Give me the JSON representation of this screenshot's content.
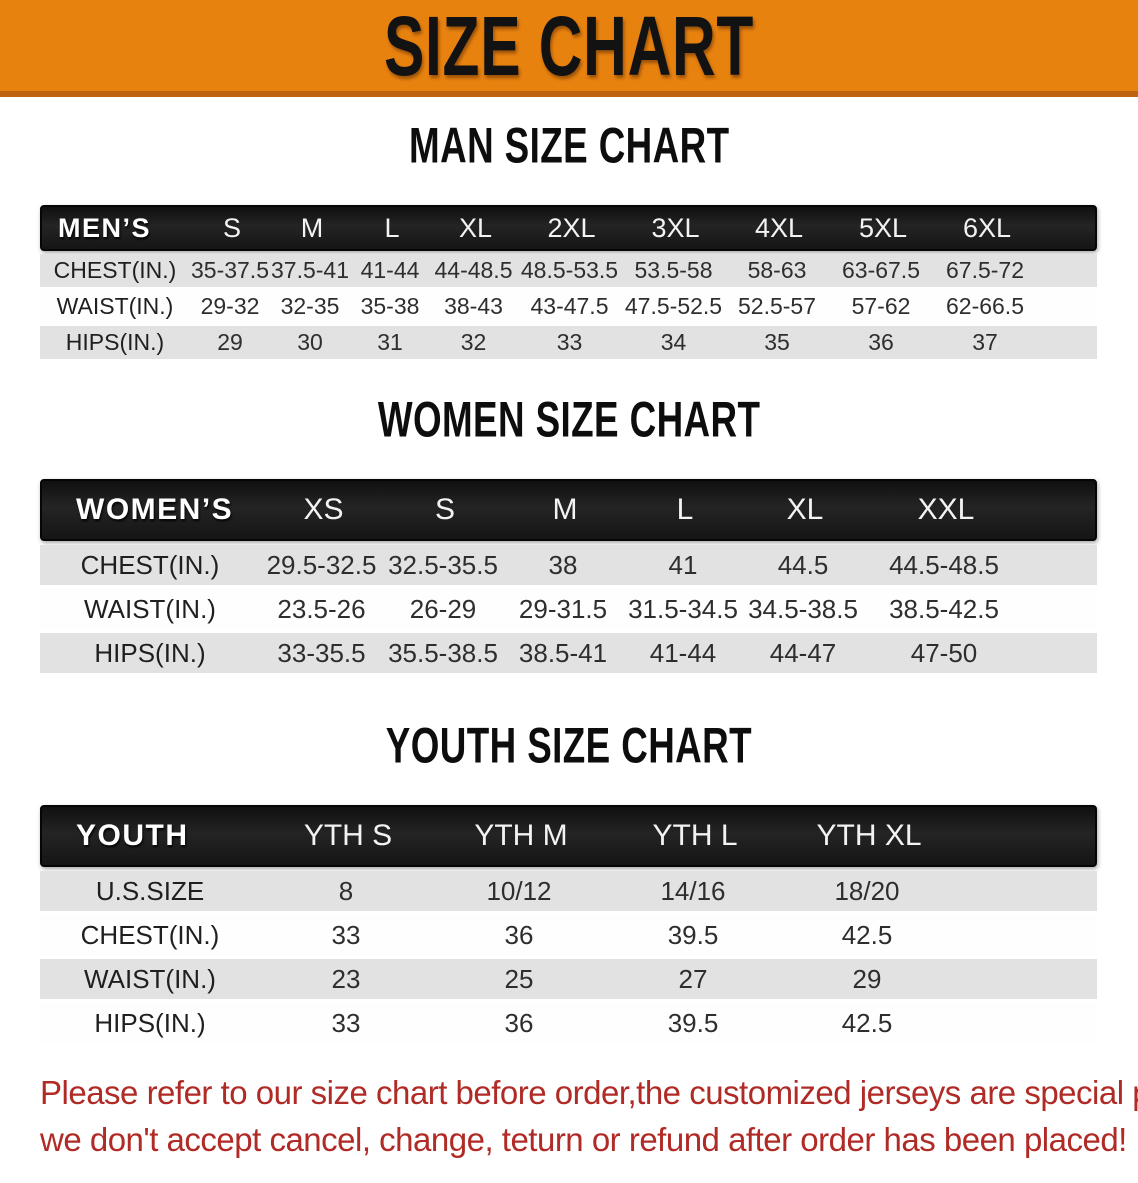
{
  "banner": {
    "title": "SIZE CHART"
  },
  "colors": {
    "banner_bg": "#e8820f",
    "banner_edge": "#bf6212",
    "header_bar": "#1b1b1b",
    "row_shade": "#e2e2e2",
    "row_plain": "#fefefe",
    "disclaimer_red": "#b02a26",
    "title_text": "#121212"
  },
  "men_chart": {
    "heading": "MAN SIZE CHART",
    "table": {
      "header_label": "MEN’S",
      "columns": [
        "S",
        "M",
        "L",
        "XL",
        "2XL",
        "3XL",
        "4XL",
        "5XL",
        "6XL"
      ],
      "rows": [
        {
          "label": "CHEST(IN.)",
          "values": [
            "35-37.5",
            "37.5-41",
            "41-44",
            "44-48.5",
            "48.5-53.5",
            "53.5-58",
            "58-63",
            "63-67.5",
            "67.5-72"
          ]
        },
        {
          "label": "WAIST(IN.)",
          "values": [
            "29-32",
            "32-35",
            "35-38",
            "38-43",
            "43-47.5",
            "47.5-52.5",
            "52.5-57",
            "57-62",
            "62-66.5"
          ]
        },
        {
          "label": "HIPS(IN.)",
          "values": [
            "29",
            "30",
            "31",
            "32",
            "33",
            "34",
            "35",
            "36",
            "37"
          ]
        }
      ]
    }
  },
  "women_chart": {
    "heading": "WOMEN SIZE CHART",
    "table": {
      "header_label": "WOMEN’S",
      "columns": [
        "XS",
        "S",
        "M",
        "L",
        "XL",
        "XXL"
      ],
      "rows": [
        {
          "label": "CHEST(IN.)",
          "values": [
            "29.5-32.5",
            "32.5-35.5",
            "38",
            "41",
            "44.5",
            "44.5-48.5"
          ]
        },
        {
          "label": "WAIST(IN.)",
          "values": [
            "23.5-26",
            "26-29",
            "29-31.5",
            "31.5-34.5",
            "34.5-38.5",
            "38.5-42.5"
          ]
        },
        {
          "label": "HIPS(IN.)",
          "values": [
            "33-35.5",
            "35.5-38.5",
            "38.5-41",
            "41-44",
            "44-47",
            "47-50"
          ]
        }
      ]
    }
  },
  "youth_chart": {
    "heading": "YOUTH SIZE CHART",
    "table": {
      "header_label": "YOUTH",
      "columns": [
        "YTH S",
        "YTH M",
        "YTH L",
        "YTH XL"
      ],
      "rows": [
        {
          "label": "U.S.SIZE",
          "values": [
            "8",
            "10/12",
            "14/16",
            "18/20"
          ]
        },
        {
          "label": "CHEST(IN.)",
          "values": [
            "33",
            "36",
            "39.5",
            "42.5"
          ]
        },
        {
          "label": "WAIST(IN.)",
          "values": [
            "23",
            "25",
            "27",
            "29"
          ]
        },
        {
          "label": "HIPS(IN.)",
          "values": [
            "33",
            "36",
            "39.5",
            "42.5"
          ]
        }
      ]
    }
  },
  "disclaimer": {
    "line1": "Please refer to our size chart before order,the customized jerseys are special products,",
    "line2": "we don't accept cancel, change, teturn or refund after order has been placed!"
  }
}
